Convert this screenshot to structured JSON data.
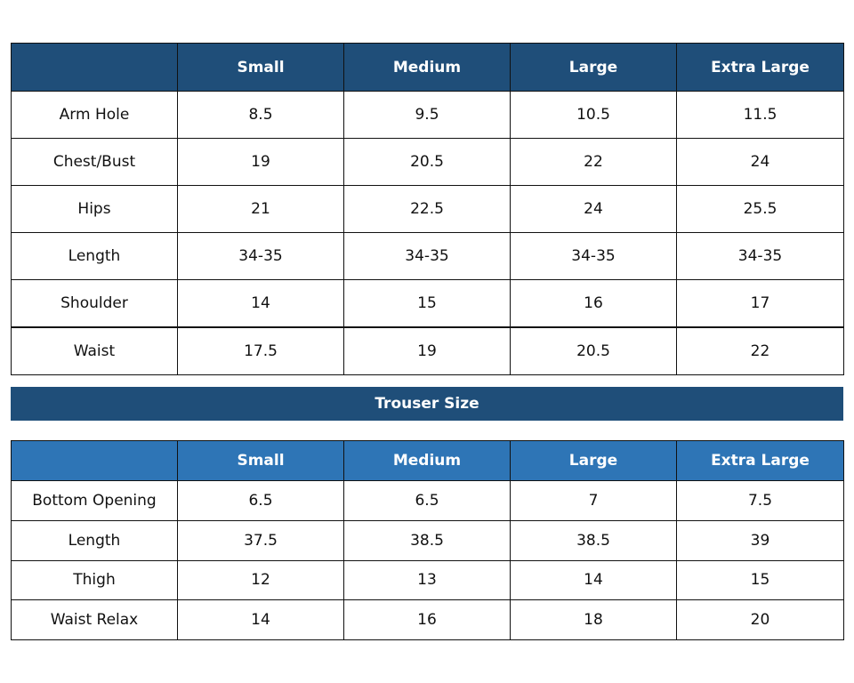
{
  "shirt_table": {
    "columns": [
      "Small",
      "Medium",
      "Large",
      "Extra Large"
    ],
    "rows": [
      {
        "label": "Arm Hole",
        "cells": [
          "8.5",
          "9.5",
          "10.5",
          "11.5"
        ]
      },
      {
        "label": "Chest/Bust",
        "cells": [
          "19",
          "20.5",
          "22",
          "24"
        ]
      },
      {
        "label": "Hips",
        "cells": [
          "21",
          "22.5",
          "24",
          "25.5"
        ]
      },
      {
        "label": "Length",
        "cells": [
          "34-35",
          "34-35",
          "34-35",
          "34-35"
        ]
      },
      {
        "label": "Shoulder",
        "cells": [
          "14",
          "15",
          "16",
          "17"
        ]
      },
      {
        "label": "Waist",
        "cells": [
          "17.5",
          "19",
          "20.5",
          "22"
        ]
      }
    ]
  },
  "trouser_title": "Trouser Size",
  "trouser_table": {
    "columns": [
      "Small",
      "Medium",
      "Large",
      "Extra Large"
    ],
    "rows": [
      {
        "label": "Bottom Opening",
        "cells": [
          "6.5",
          "6.5",
          "7",
          "7.5"
        ]
      },
      {
        "label": "Length",
        "cells": [
          "37.5",
          "38.5",
          "38.5",
          "39"
        ]
      },
      {
        "label": "Thigh",
        "cells": [
          "12",
          "13",
          "14",
          "15"
        ]
      },
      {
        "label": "Waist Relax",
        "cells": [
          "14",
          "16",
          "18",
          "20"
        ]
      }
    ]
  }
}
